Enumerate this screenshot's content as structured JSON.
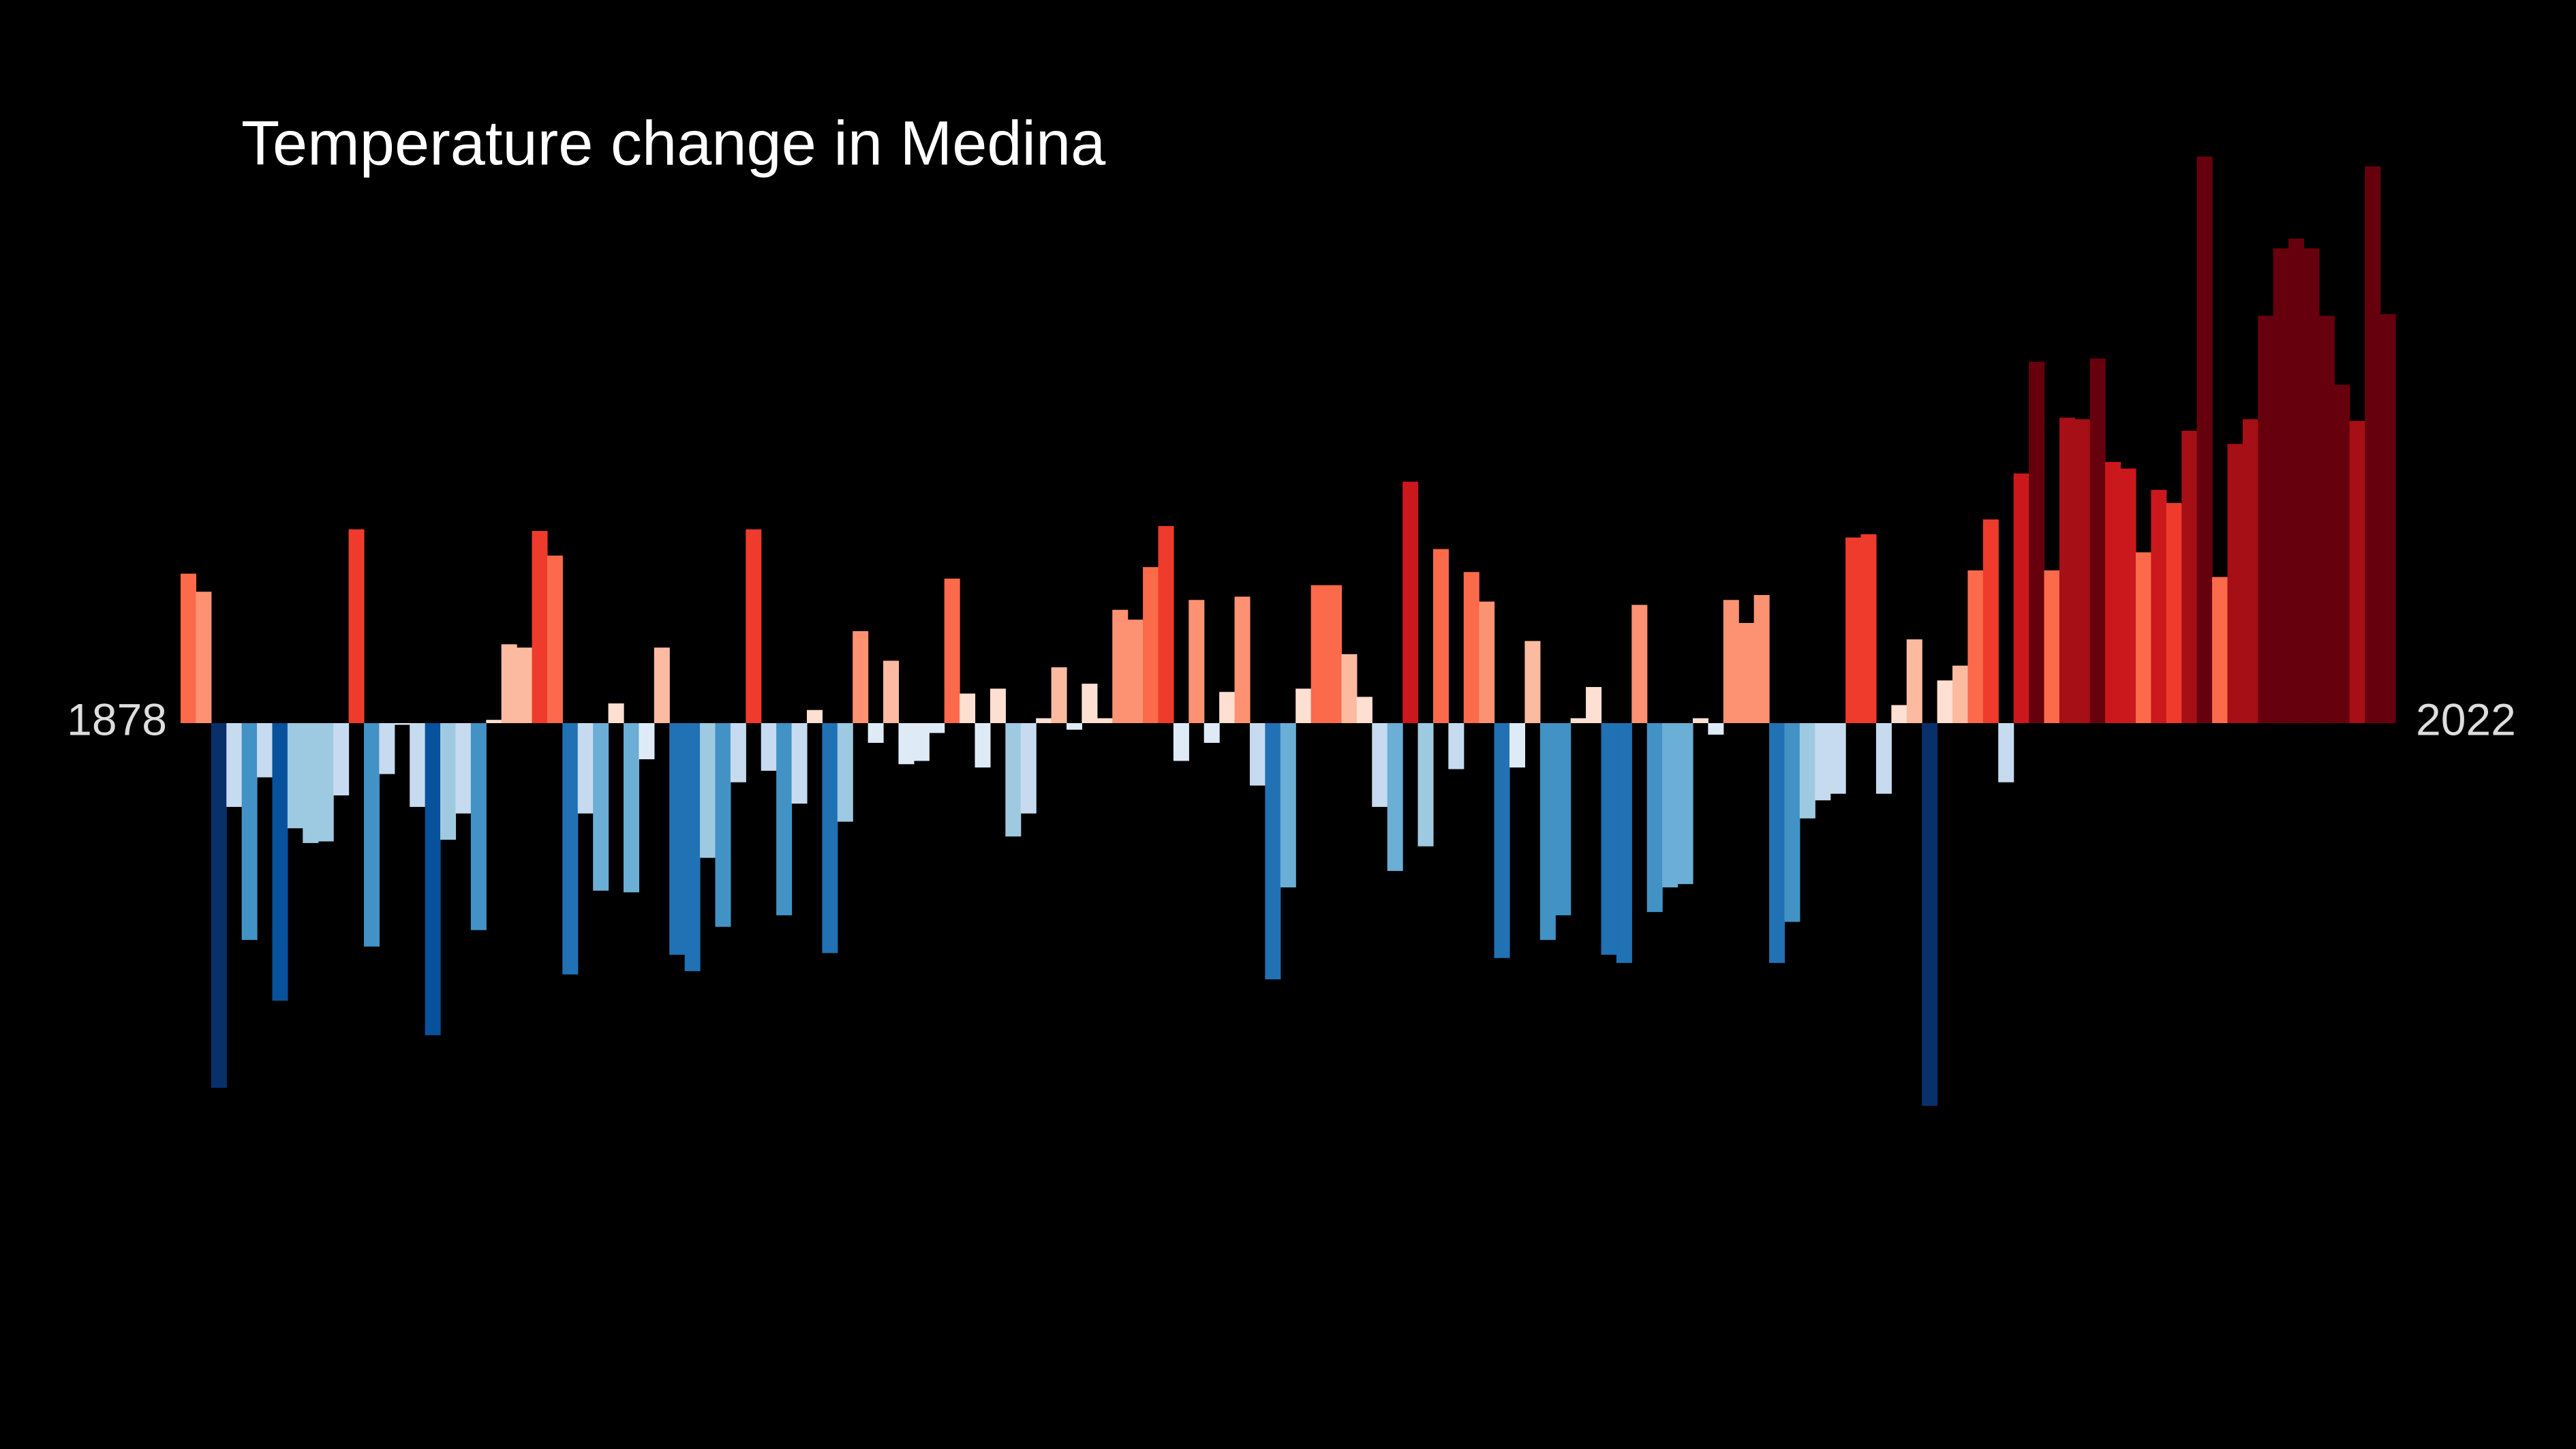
{
  "chart_data": {
    "type": "bar",
    "title": "Temperature change in Medina",
    "categories": [
      1878,
      null,
      null,
      null,
      null,
      null,
      null,
      null,
      null,
      null,
      null,
      null,
      null,
      null,
      null,
      null,
      null,
      null,
      null,
      null,
      null,
      null,
      null,
      null,
      null,
      null,
      null,
      null,
      null,
      null,
      null,
      null,
      null,
      null,
      null,
      null,
      null,
      null,
      null,
      null,
      null,
      null,
      null,
      null,
      null,
      null,
      null,
      null,
      null,
      null,
      null,
      null,
      null,
      null,
      null,
      null,
      null,
      null,
      null,
      null,
      null,
      null,
      null,
      null,
      null,
      null,
      null,
      null,
      null,
      null,
      null,
      null,
      null,
      null,
      null,
      null,
      null,
      null,
      null,
      null,
      null,
      null,
      null,
      null,
      null,
      null,
      null,
      null,
      null,
      null,
      null,
      null,
      null,
      null,
      null,
      null,
      null,
      null,
      null,
      null,
      null,
      null,
      null,
      null,
      null,
      null,
      null,
      null,
      null,
      null,
      null,
      null,
      null,
      null,
      null,
      null,
      null,
      null,
      null,
      null,
      null,
      null,
      null,
      null,
      null,
      null,
      null,
      null,
      null,
      null,
      null,
      null,
      null,
      null,
      null,
      null,
      null,
      null,
      null,
      null,
      null,
      null,
      null,
      null,
      2022
    ],
    "values": [
      0.91,
      0.8,
      -2.22,
      -0.51,
      -1.32,
      -0.33,
      -1.69,
      -0.64,
      -0.73,
      -0.72,
      -0.44,
      1.18,
      -1.36,
      -0.31,
      -0.01,
      -0.51,
      -1.9,
      -0.71,
      -0.55,
      -1.26,
      0.02,
      0.48,
      0.46,
      1.17,
      1.02,
      -1.53,
      -0.55,
      -1.02,
      0.12,
      -1.03,
      -0.22,
      0.46,
      -1.41,
      -1.51,
      -0.82,
      -1.24,
      -0.36,
      1.18,
      -0.29,
      -1.17,
      -0.49,
      0.08,
      -1.4,
      -0.6,
      0.56,
      -0.12,
      0.38,
      -0.25,
      -0.23,
      -0.06,
      0.88,
      0.18,
      -0.27,
      0.21,
      -0.69,
      -0.55,
      0.03,
      0.34,
      -0.04,
      0.24,
      0.03,
      0.69,
      0.63,
      0.95,
      1.2,
      -0.23,
      0.75,
      -0.12,
      0.19,
      0.77,
      -0.38,
      -1.56,
      -1.0,
      0.21,
      0.84,
      0.84,
      0.42,
      0.16,
      -0.51,
      -0.9,
      1.47,
      -0.75,
      1.06,
      -0.28,
      0.92,
      0.74,
      -1.43,
      -0.27,
      0.5,
      -1.32,
      -1.17,
      0.03,
      0.22,
      -1.41,
      -1.46,
      0.72,
      -1.15,
      -1.0,
      -0.98,
      0.03,
      -0.07,
      0.75,
      0.61,
      0.78,
      -1.46,
      -1.21,
      -0.58,
      -0.47,
      -0.43,
      1.13,
      1.15,
      -0.43,
      0.11,
      0.51,
      -2.33,
      0.26,
      0.35,
      0.93,
      1.24,
      -0.36,
      1.52,
      2.2,
      0.93,
      1.86,
      1.85,
      2.22,
      1.59,
      1.55,
      1.04,
      1.42,
      1.34,
      1.78,
      3.45,
      0.89,
      1.7,
      1.85,
      2.48,
      2.89,
      2.95,
      2.89,
      2.48,
      2.06,
      1.84,
      3.39,
      2.49
    ],
    "color_scale": {
      "domain": [
        -2.2,
        2.2
      ],
      "colors": [
        "#08306b",
        "#08519c",
        "#2171b5",
        "#4292c6",
        "#6baed6",
        "#9ecae1",
        "#c6dbef",
        "#deebf7",
        "#fee0d2",
        "#fcbba1",
        "#fc9272",
        "#fb6a4a",
        "#ef3b2c",
        "#cb181d",
        "#a50f15",
        "#67000d"
      ]
    }
  }
}
